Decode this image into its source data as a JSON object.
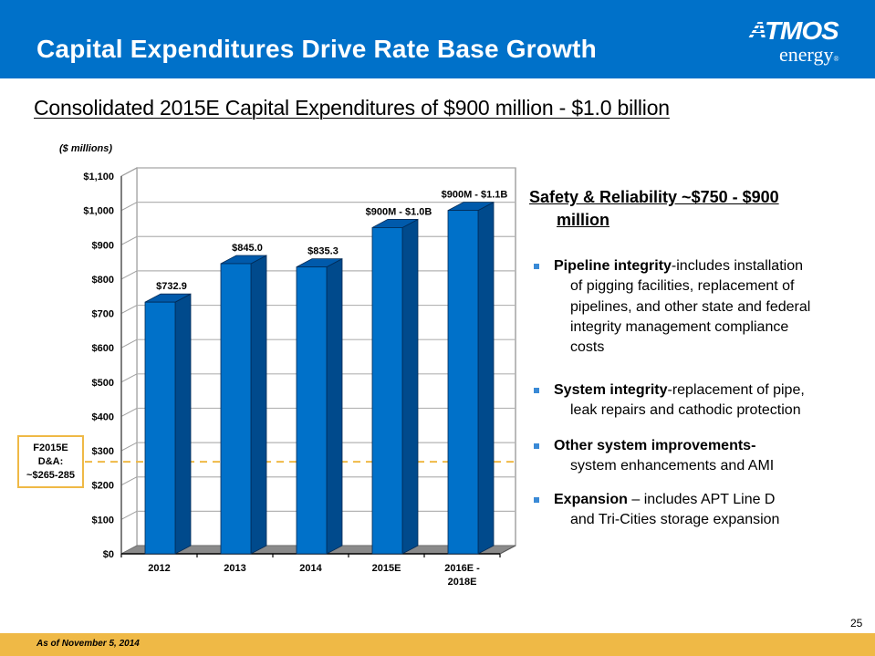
{
  "header": {
    "title": "Capital Expenditures Drive Rate Base Growth",
    "logo": {
      "wordmark": "ATMOS",
      "sub": "energy",
      "registered": "®"
    },
    "background_color": "#0071c9"
  },
  "subtitle": "Consolidated 2015E Capital Expenditures of $900 million - $1.0 billion",
  "right_panel": {
    "heading_line1": "Safety & Reliability ~$750 - $900",
    "heading_line2": "million",
    "bullets": [
      {
        "lead": "Pipeline integrity",
        "lines": [
          "-includes installation",
          "of pigging facilities, replacement of",
          "pipelines, and other state and federal",
          "integrity management compliance",
          "costs"
        ]
      },
      {
        "lead": "System integrity",
        "lines": [
          "-replacement of pipe,",
          "leak repairs and cathodic protection"
        ]
      },
      {
        "lead": "Other system improvements",
        "lines": [
          "-",
          "system enhancements and AMI"
        ]
      },
      {
        "lead": "Expansion",
        "lines": [
          " – includes APT Line D",
          "and Tri-Cities storage expansion"
        ]
      }
    ],
    "bullet_color": "#3a8ad6"
  },
  "footer": {
    "note": "As of November 5, 2014",
    "page_number": "25",
    "color": "#efb946"
  },
  "chart_data": {
    "type": "bar",
    "style": "3d-column",
    "unit_label": "($ millions)",
    "categories": [
      "2012",
      "2013",
      "2014",
      "2015E",
      "2016E - 2018E"
    ],
    "values": [
      732.9,
      845.0,
      835.3,
      950,
      1000
    ],
    "ranges": [
      null,
      null,
      null,
      [
        900,
        1000
      ],
      [
        900,
        1100
      ]
    ],
    "value_labels": [
      "$732.9",
      "$845.0",
      "$835.3",
      "$900M - $1.0B",
      "$900M - $1.1B"
    ],
    "ylim": [
      0,
      1100
    ],
    "yticks": [
      0,
      100,
      200,
      300,
      400,
      500,
      600,
      700,
      800,
      900,
      1000,
      1100
    ],
    "ytick_labels": [
      "$0",
      "$100",
      "$200",
      "$300",
      "$400",
      "$500",
      "$600",
      "$700",
      "$800",
      "$900",
      "$1,000",
      "$1,100"
    ],
    "grid": true,
    "xlabel": "",
    "ylabel": "",
    "reference_line": {
      "value": 268,
      "label_lines": [
        "F2015E",
        "D&A:",
        "~$265-285"
      ],
      "style": "dashed",
      "color": "#efb946"
    },
    "colors": {
      "bar_front": "#0071c9",
      "bar_top": "#005aab",
      "bar_side": "#004a8c",
      "floor": "#8a8a8a",
      "wall_line": "#8c8c8c"
    }
  }
}
